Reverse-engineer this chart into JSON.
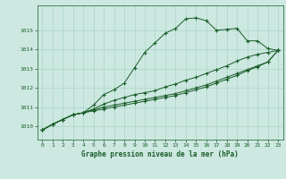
{
  "xlabel": "Graphe pression niveau de la mer (hPa)",
  "background_color": "#cce8e0",
  "grid_color": "#b0d8cc",
  "line_color": "#1a5c2a",
  "xlim": [
    -0.5,
    23.5
  ],
  "ylim": [
    1009.3,
    1016.3
  ],
  "yticks": [
    1010,
    1011,
    1012,
    1013,
    1014,
    1015
  ],
  "xticks": [
    0,
    1,
    2,
    3,
    4,
    5,
    6,
    7,
    8,
    9,
    10,
    11,
    12,
    13,
    14,
    15,
    16,
    17,
    18,
    19,
    20,
    21,
    22,
    23
  ],
  "line1": [
    1009.8,
    1010.1,
    1010.35,
    1010.6,
    1010.7,
    1011.1,
    1011.65,
    1011.9,
    1012.25,
    1013.05,
    1013.85,
    1014.35,
    1014.85,
    1015.1,
    1015.6,
    1015.65,
    1015.5,
    1015.0,
    1015.05,
    1015.1,
    1014.45,
    1014.45,
    1014.05,
    1013.95
  ],
  "line2": [
    1009.8,
    1010.1,
    1010.35,
    1010.6,
    1010.7,
    1010.9,
    1011.15,
    1011.35,
    1011.5,
    1011.65,
    1011.75,
    1011.85,
    1012.05,
    1012.2,
    1012.4,
    1012.55,
    1012.75,
    1012.95,
    1013.15,
    1013.4,
    1013.6,
    1013.75,
    1013.85,
    1013.95
  ],
  "line3": [
    1009.8,
    1010.1,
    1010.35,
    1010.6,
    1010.7,
    1010.85,
    1011.0,
    1011.1,
    1011.2,
    1011.3,
    1011.4,
    1011.5,
    1011.6,
    1011.7,
    1011.85,
    1012.0,
    1012.15,
    1012.35,
    1012.55,
    1012.75,
    1012.95,
    1013.15,
    1013.35,
    1013.95
  ],
  "line4": [
    1009.8,
    1010.1,
    1010.35,
    1010.6,
    1010.7,
    1010.8,
    1010.9,
    1011.0,
    1011.1,
    1011.2,
    1011.3,
    1011.4,
    1011.5,
    1011.6,
    1011.75,
    1011.9,
    1012.05,
    1012.25,
    1012.45,
    1012.65,
    1012.9,
    1013.1,
    1013.35,
    1013.95
  ]
}
